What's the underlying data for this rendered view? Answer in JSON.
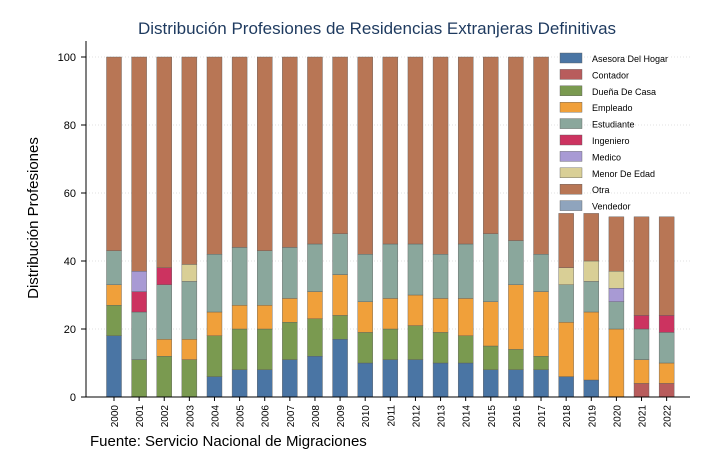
{
  "chart_data": {
    "type": "bar",
    "stacked": true,
    "title": "Distribución Profesiones de Residencias Extranjeras Definitivas",
    "ylabel": "Distribución Profesiones",
    "xlabel": "",
    "ylim": [
      0,
      100
    ],
    "yticks": [
      0,
      20,
      40,
      60,
      80,
      100
    ],
    "grid": true,
    "legend_position": "top-right",
    "categories": [
      "2000",
      "2001",
      "2002",
      "2003",
      "2004",
      "2005",
      "2006",
      "2007",
      "2008",
      "2009",
      "2010",
      "2011",
      "2012",
      "2013",
      "2014",
      "2015",
      "2016",
      "2017",
      "2018",
      "2019",
      "2020",
      "2021",
      "2022"
    ],
    "series": [
      {
        "name": "Asesora Del Hogar",
        "color": "#4a75a4",
        "values": [
          18,
          0,
          0,
          0,
          6,
          8,
          8,
          11,
          12,
          17,
          10,
          11,
          11,
          10,
          10,
          8,
          8,
          8,
          6,
          5,
          0,
          0,
          0
        ]
      },
      {
        "name": "Contador",
        "color": "#b85c5c",
        "values": [
          0,
          0,
          0,
          0,
          0,
          0,
          0,
          0,
          0,
          0,
          0,
          0,
          0,
          0,
          0,
          0,
          0,
          0,
          0,
          0,
          0,
          4,
          4
        ]
      },
      {
        "name": "Dueña De Casa",
        "color": "#7a9a50",
        "values": [
          9,
          11,
          12,
          11,
          12,
          12,
          12,
          11,
          11,
          7,
          9,
          9,
          10,
          9,
          8,
          7,
          6,
          4,
          0,
          0,
          0,
          0,
          0
        ]
      },
      {
        "name": "Empleado",
        "color": "#f0a03a",
        "values": [
          6,
          0,
          5,
          6,
          7,
          7,
          7,
          7,
          8,
          12,
          9,
          9,
          9,
          10,
          11,
          13,
          19,
          19,
          16,
          20,
          20,
          7,
          6
        ]
      },
      {
        "name": "Estudiante",
        "color": "#8aa79c",
        "values": [
          10,
          14,
          16,
          17,
          17,
          17,
          16,
          15,
          14,
          12,
          14,
          16,
          15,
          13,
          16,
          20,
          13,
          11,
          11,
          9,
          8,
          9,
          9
        ]
      },
      {
        "name": "Ingeniero",
        "color": "#cc3360",
        "values": [
          0,
          6,
          5,
          0,
          0,
          0,
          0,
          0,
          0,
          0,
          0,
          0,
          0,
          0,
          0,
          0,
          0,
          0,
          0,
          0,
          0,
          4,
          5
        ]
      },
      {
        "name": "Medico",
        "color": "#a89ad4",
        "values": [
          0,
          6,
          0,
          0,
          0,
          0,
          0,
          0,
          0,
          0,
          0,
          0,
          0,
          0,
          0,
          0,
          0,
          0,
          0,
          0,
          4,
          0,
          0
        ]
      },
      {
        "name": "Menor De Edad",
        "color": "#d9cf96",
        "values": [
          0,
          0,
          0,
          5,
          0,
          0,
          0,
          0,
          0,
          0,
          0,
          0,
          0,
          0,
          0,
          0,
          0,
          0,
          5,
          6,
          5,
          0,
          0
        ]
      },
      {
        "name": "Otra",
        "color": "#b87655",
        "values": [
          57,
          63,
          62,
          61,
          58,
          56,
          57,
          56,
          55,
          52,
          58,
          55,
          55,
          58,
          55,
          52,
          54,
          58,
          16,
          14,
          16,
          29,
          29
        ]
      },
      {
        "name": "Vendedor",
        "color": "#8fa4bd",
        "values": [
          0,
          0,
          0,
          0,
          0,
          0,
          0,
          0,
          0,
          0,
          0,
          0,
          0,
          0,
          0,
          0,
          0,
          0,
          0,
          0,
          0,
          0,
          0
        ]
      }
    ]
  },
  "caption": "Fuente: Servicio Nacional de Migraciones"
}
